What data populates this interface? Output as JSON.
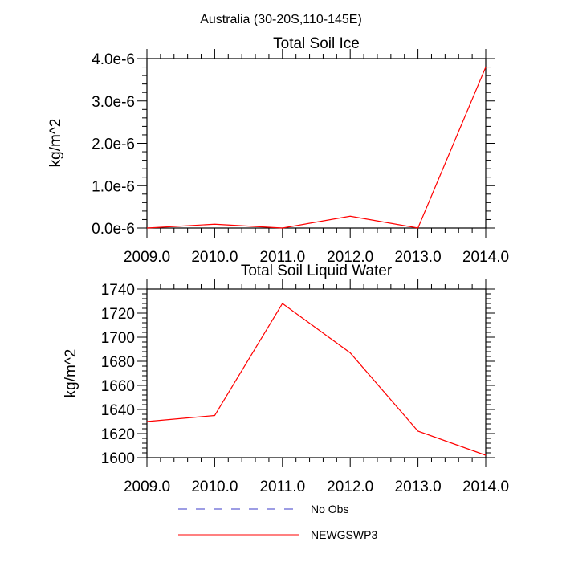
{
  "suptitle": "Australia (30-20S,110-145E)",
  "chart_data": [
    {
      "type": "line",
      "title": "Total Soil Ice",
      "xlabel": "",
      "ylabel": "kg/m^2",
      "x": [
        2009,
        2010,
        2011,
        2012,
        2013,
        2014
      ],
      "xticks": [
        "2009.0",
        "2010.0",
        "2011.0",
        "2012.0",
        "2013.0",
        "2014.0"
      ],
      "xlim": [
        2009,
        2014
      ],
      "ylim": [
        0,
        4e-06
      ],
      "yticks": [
        0,
        1e-06,
        2e-06,
        3e-06,
        4e-06
      ],
      "yticklabels": [
        "0.0e-6",
        "1.0e-6",
        "2.0e-6",
        "3.0e-6",
        "4.0e-6"
      ],
      "series": [
        {
          "name": "NEWGSWP3",
          "color": "#ff0000",
          "values": [
            0,
            9e-08,
            0,
            2.8e-07,
            0,
            3.8e-06
          ]
        }
      ]
    },
    {
      "type": "line",
      "title": "Total Soil Liquid Water",
      "xlabel": "",
      "ylabel": "kg/m^2",
      "x": [
        2009,
        2010,
        2011,
        2012,
        2013,
        2014
      ],
      "xticks": [
        "2009.0",
        "2010.0",
        "2011.0",
        "2012.0",
        "2013.0",
        "2014.0"
      ],
      "xlim": [
        2009,
        2014
      ],
      "ylim": [
        1600,
        1740
      ],
      "yticks": [
        1600,
        1620,
        1640,
        1660,
        1680,
        1700,
        1720,
        1740
      ],
      "yticklabels": [
        "1600",
        "1620",
        "1640",
        "1660",
        "1680",
        "1700",
        "1720",
        "1740"
      ],
      "series": [
        {
          "name": "NEWGSWP3",
          "color": "#ff0000",
          "values": [
            1630,
            1635,
            1728,
            1687,
            1622,
            1602
          ]
        }
      ]
    }
  ],
  "legend": [
    {
      "label": "No Obs",
      "color": "#3b3bc8",
      "style": "dashed"
    },
    {
      "label": "NEWGSWP3",
      "color": "#ff0000",
      "style": "solid"
    }
  ]
}
